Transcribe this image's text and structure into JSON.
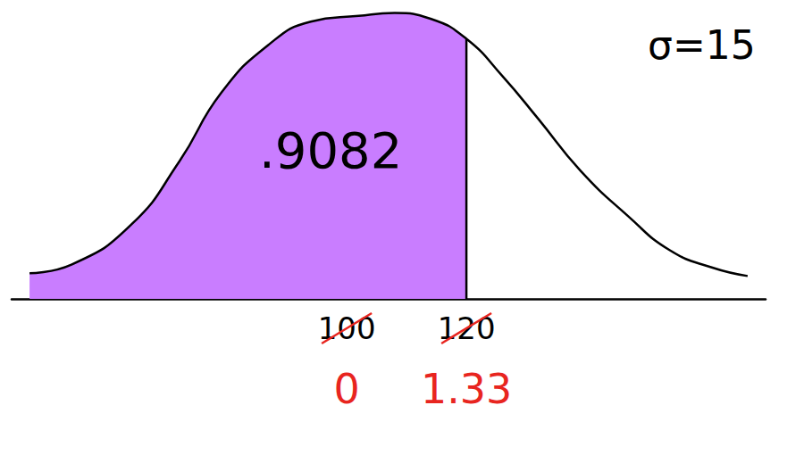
{
  "chart_data": {
    "type": "line",
    "x": [
      47,
      54,
      64,
      72,
      79,
      87,
      94,
      102,
      108,
      114,
      120,
      126,
      132,
      139,
      147,
      154,
      161,
      167
    ],
    "values": [
      9,
      12,
      26,
      48,
      72,
      89,
      97,
      99,
      100,
      98,
      91,
      78,
      63,
      45,
      29,
      17,
      11,
      8
    ],
    "color": "#000000",
    "shade": {
      "to": 120,
      "color": "#c97dff"
    },
    "xlim": [
      44,
      170
    ],
    "xticks": [
      100,
      120
    ],
    "z_labels": {
      "values": [
        0,
        1.33
      ],
      "color": "#e8251f"
    },
    "ylim": [
      0,
      103
    ],
    "yticks": [],
    "tick_labels": "x",
    "annotations": [
      {
        "text": ".9082"
      },
      {
        "text": "σ=15"
      }
    ],
    "grid": false
  }
}
